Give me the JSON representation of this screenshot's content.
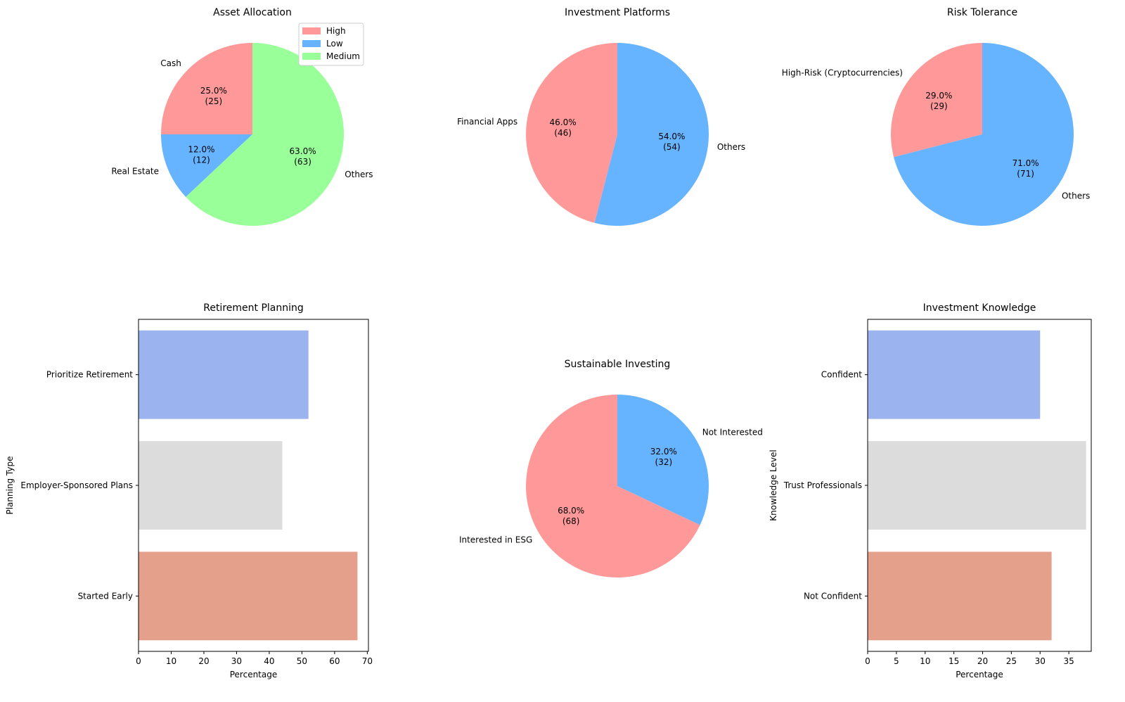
{
  "chart_data": [
    {
      "type": "pie",
      "title": "Asset Allocation",
      "labels": [
        "Cash",
        "Real Estate",
        "Others"
      ],
      "values": [
        25,
        12,
        63
      ],
      "colors": [
        "#ff9999",
        "#66b3ff",
        "#99ff99"
      ],
      "start_angle": 90,
      "pct_labels": [
        "25.0%\n(25)",
        "12.0%\n(12)",
        "63.0%\n(63)"
      ],
      "legend": {
        "entries": [
          "High",
          "Low",
          "Medium"
        ],
        "placement": "upper-right"
      }
    },
    {
      "type": "pie",
      "title": "Investment Platforms",
      "labels": [
        "Financial Apps",
        "Others"
      ],
      "values": [
        46,
        54
      ],
      "colors": [
        "#ff9999",
        "#66b3ff"
      ],
      "start_angle": 90,
      "pct_labels": [
        "46.0%\n(46)",
        "54.0%\n(54)"
      ]
    },
    {
      "type": "pie",
      "title": "Risk Tolerance",
      "labels": [
        "High-Risk (Cryptocurrencies)",
        "Others"
      ],
      "values": [
        29,
        71
      ],
      "colors": [
        "#ff9999",
        "#66b3ff"
      ],
      "start_angle": 90,
      "pct_labels": [
        "29.0%\n(29)",
        "71.0%\n(71)"
      ]
    },
    {
      "type": "bar",
      "orientation": "horizontal",
      "title": "Retirement Planning",
      "categories": [
        "Prioritize Retirement",
        "Employer-Sponsored Plans",
        "Started Early"
      ],
      "values": [
        52,
        44,
        67
      ],
      "colors": [
        "#9bb4ef",
        "#dcdcdc",
        "#e4a08a"
      ],
      "xlabel": "Percentage",
      "ylabel": "Planning Type",
      "xlim": [
        0,
        70.35
      ],
      "xticks": [
        "0",
        "10",
        "20",
        "30",
        "40",
        "50",
        "60",
        "70"
      ]
    },
    {
      "type": "pie",
      "title": "Sustainable Investing",
      "labels": [
        "Interested in ESG",
        "Not Interested"
      ],
      "values": [
        68,
        32
      ],
      "colors": [
        "#ff9999",
        "#66b3ff"
      ],
      "start_angle": 90,
      "pct_labels": [
        "68.0%\n(68)",
        "32.0%\n(32)"
      ]
    },
    {
      "type": "bar",
      "orientation": "horizontal",
      "title": "Investment Knowledge",
      "categories": [
        "Confident",
        "Trust Professionals",
        "Not Confident"
      ],
      "values": [
        30,
        38,
        32
      ],
      "colors": [
        "#9bb4ef",
        "#dcdcdc",
        "#e4a08a"
      ],
      "xlabel": "Percentage",
      "ylabel": "Knowledge Level",
      "xlim": [
        0,
        38.9
      ],
      "xticks": [
        "0",
        "5",
        "10",
        "15",
        "20",
        "25",
        "30",
        "35"
      ]
    }
  ]
}
